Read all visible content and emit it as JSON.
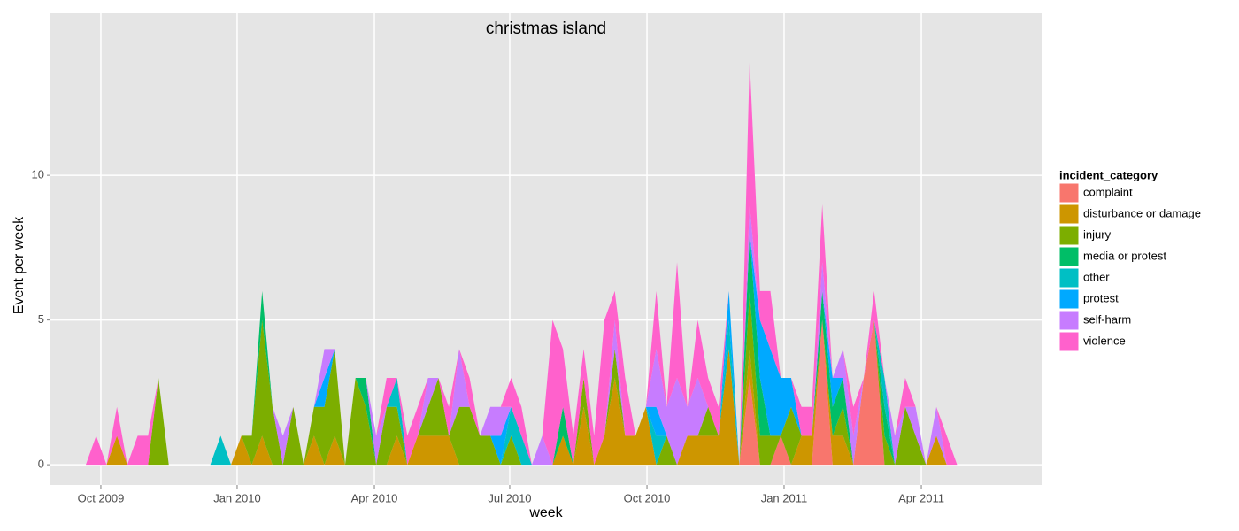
{
  "chart_data": {
    "type": "area",
    "title": "christmas island",
    "x_label": "week",
    "y_label": "Event per week",
    "legend_title": "incident_category",
    "stacked": true,
    "grid": true,
    "legend_position": "right",
    "x": [
      0,
      1,
      2,
      3,
      4,
      5,
      6,
      7,
      8,
      9,
      10,
      11,
      12,
      13,
      14,
      15,
      16,
      17,
      18,
      19,
      20,
      21,
      22,
      23,
      24,
      25,
      26,
      27,
      28,
      29,
      30,
      31,
      32,
      33,
      34,
      35,
      36,
      37,
      38,
      39,
      40,
      41,
      42,
      43,
      44,
      45,
      46,
      47,
      48,
      49,
      50,
      51,
      52,
      53,
      54,
      55,
      56,
      57,
      58,
      59,
      60,
      61,
      62,
      63,
      64,
      65,
      66,
      67,
      68,
      69,
      70,
      71,
      72,
      73,
      74,
      75,
      76,
      77,
      78,
      79,
      80,
      81,
      82,
      83,
      84
    ],
    "xlim": [
      -3.41,
      92.15
    ],
    "xticks": [
      {
        "value": 1.45,
        "label": "Oct 2009"
      },
      {
        "value": 14.59,
        "label": "Jan 2010"
      },
      {
        "value": 27.82,
        "label": "Apr 2010"
      },
      {
        "value": 40.87,
        "label": "Jul 2010"
      },
      {
        "value": 54.1,
        "label": "Oct 2010"
      },
      {
        "value": 67.32,
        "label": "Jan 2011"
      },
      {
        "value": 80.55,
        "label": "Apr 2011"
      }
    ],
    "ylim": [
      -0.7,
      15.6
    ],
    "yticks": [
      0,
      5,
      10
    ],
    "series": [
      {
        "name": "complaint",
        "color": "#F8766D",
        "values": [
          0,
          0,
          0,
          0,
          0,
          0,
          0,
          0,
          0,
          0,
          0,
          0,
          0,
          0,
          0,
          0,
          0,
          0,
          0,
          0,
          0,
          0,
          0,
          0,
          0,
          0,
          0,
          0,
          0,
          0,
          0,
          0,
          0,
          0,
          0,
          0,
          0,
          0,
          0,
          0,
          0,
          0,
          0,
          0,
          0,
          0,
          0,
          0,
          0,
          0,
          0,
          0,
          0,
          0,
          0,
          0,
          0,
          0,
          0,
          0,
          0,
          0,
          0,
          0,
          3,
          0,
          0,
          1,
          0,
          0,
          0,
          5,
          0,
          0,
          0,
          3,
          5,
          0,
          0,
          0,
          0,
          0,
          0,
          0,
          0
        ]
      },
      {
        "name": "disturbance or damage",
        "color": "#CD9600",
        "values": [
          0,
          0,
          0,
          1,
          0,
          0,
          0,
          0,
          0,
          0,
          0,
          0,
          0,
          0,
          0,
          1,
          0,
          1,
          0,
          0,
          0,
          0,
          1,
          0,
          1,
          0,
          0,
          0,
          0,
          0,
          1,
          0,
          1,
          1,
          1,
          1,
          0,
          0,
          0,
          0,
          0,
          0,
          0,
          0,
          0,
          0,
          1,
          0,
          2,
          0,
          1,
          3,
          1,
          1,
          2,
          0,
          0,
          0,
          1,
          1,
          1,
          1,
          4,
          0,
          1,
          0,
          0,
          0,
          0,
          1,
          1,
          0,
          1,
          1,
          0,
          0,
          0,
          0,
          0,
          0,
          0,
          0,
          1,
          0,
          0
        ]
      },
      {
        "name": "injury",
        "color": "#7CAE00",
        "values": [
          0,
          0,
          0,
          0,
          0,
          0,
          0,
          3,
          0,
          0,
          0,
          0,
          0,
          0,
          0,
          0,
          1,
          4,
          2,
          0,
          2,
          0,
          1,
          2,
          3,
          0,
          3,
          2,
          0,
          2,
          1,
          0,
          0,
          1,
          2,
          0,
          2,
          2,
          1,
          1,
          0,
          1,
          0,
          0,
          0,
          0,
          0,
          0,
          1,
          0,
          0,
          1,
          0,
          0,
          0,
          0,
          1,
          0,
          0,
          0,
          1,
          0,
          0,
          0,
          2,
          1,
          1,
          0,
          2,
          0,
          0,
          0,
          0,
          1,
          0,
          0,
          0,
          1,
          0,
          2,
          1,
          0,
          0,
          0,
          0
        ]
      },
      {
        "name": "media or protest",
        "color": "#00BE67",
        "values": [
          0,
          0,
          0,
          0,
          0,
          0,
          0,
          0,
          0,
          0,
          0,
          0,
          0,
          0,
          0,
          0,
          0,
          1,
          0,
          0,
          0,
          0,
          0,
          0,
          0,
          0,
          0,
          1,
          0,
          0,
          0,
          0,
          0,
          0,
          0,
          0,
          0,
          0,
          0,
          0,
          0,
          0,
          0,
          0,
          0,
          0,
          1,
          0,
          0,
          0,
          0,
          0,
          0,
          0,
          0,
          0,
          0,
          0,
          0,
          0,
          0,
          0,
          0,
          0,
          2,
          2,
          0,
          0,
          0,
          0,
          0,
          1,
          1,
          1,
          0,
          0,
          0,
          1,
          0,
          0,
          0,
          0,
          0,
          0,
          0
        ]
      },
      {
        "name": "other",
        "color": "#00BFC4",
        "values": [
          0,
          0,
          0,
          0,
          0,
          0,
          0,
          0,
          0,
          0,
          0,
          0,
          0,
          1,
          0,
          0,
          0,
          0,
          0,
          0,
          0,
          0,
          0,
          0,
          0,
          0,
          0,
          0,
          0,
          0,
          1,
          0,
          0,
          0,
          0,
          0,
          0,
          0,
          0,
          0,
          0,
          1,
          1,
          0,
          0,
          0,
          0,
          0,
          0,
          0,
          0,
          0,
          0,
          0,
          0,
          1,
          0,
          0,
          0,
          0,
          0,
          0,
          1,
          0,
          0,
          0,
          0,
          0,
          0,
          0,
          0,
          0,
          0,
          0,
          0,
          0,
          0,
          1,
          0,
          0,
          0,
          0,
          0,
          0,
          0
        ]
      },
      {
        "name": "protest",
        "color": "#00A9FF",
        "values": [
          0,
          0,
          0,
          0,
          0,
          0,
          0,
          0,
          0,
          0,
          0,
          0,
          0,
          0,
          0,
          0,
          0,
          0,
          0,
          0,
          0,
          0,
          0,
          1,
          0,
          0,
          0,
          0,
          0,
          0,
          0,
          0,
          0,
          0,
          0,
          0,
          0,
          0,
          0,
          0,
          1,
          0,
          0,
          0,
          0,
          0,
          0,
          0,
          0,
          0,
          0,
          0,
          0,
          0,
          0,
          1,
          0,
          0,
          0,
          0,
          0,
          0,
          1,
          0,
          0,
          2,
          3,
          2,
          1,
          0,
          0,
          0,
          1,
          0,
          0,
          0,
          0,
          0,
          0,
          0,
          0,
          0,
          0,
          0,
          0
        ]
      },
      {
        "name": "self-harm",
        "color": "#C77CFF",
        "values": [
          0,
          0,
          0,
          0,
          0,
          0,
          0,
          0,
          0,
          0,
          0,
          0,
          0,
          0,
          0,
          0,
          0,
          0,
          0,
          1,
          0,
          0,
          0,
          1,
          0,
          0,
          0,
          0,
          1,
          0,
          0,
          0,
          0,
          1,
          0,
          0,
          2,
          0,
          0,
          1,
          1,
          0,
          0,
          0,
          1,
          0,
          0,
          0,
          0,
          0,
          0,
          1,
          0,
          0,
          0,
          2,
          1,
          3,
          1,
          2,
          0,
          0,
          0,
          0,
          1,
          0,
          0,
          0,
          0,
          0,
          0,
          1,
          0,
          1,
          1,
          0,
          0,
          0,
          1,
          0,
          1,
          0,
          1,
          0,
          0
        ]
      },
      {
        "name": "violence",
        "color": "#FF61CC",
        "values": [
          0,
          1,
          0,
          1,
          0,
          1,
          1,
          0,
          0,
          0,
          0,
          0,
          0,
          0,
          0,
          0,
          0,
          0,
          0,
          0,
          0,
          0,
          0,
          0,
          0,
          0,
          0,
          0,
          0,
          1,
          0,
          1,
          1,
          0,
          0,
          1,
          0,
          1,
          0,
          0,
          0,
          1,
          1,
          0,
          0,
          5,
          2,
          1,
          1,
          1,
          4,
          1,
          2,
          0,
          0,
          2,
          0,
          4,
          0,
          2,
          1,
          1,
          0,
          0,
          5,
          1,
          2,
          0,
          0,
          1,
          1,
          2,
          0,
          0,
          1,
          0,
          1,
          0,
          0,
          1,
          0,
          0,
          0,
          1,
          0
        ]
      }
    ]
  }
}
